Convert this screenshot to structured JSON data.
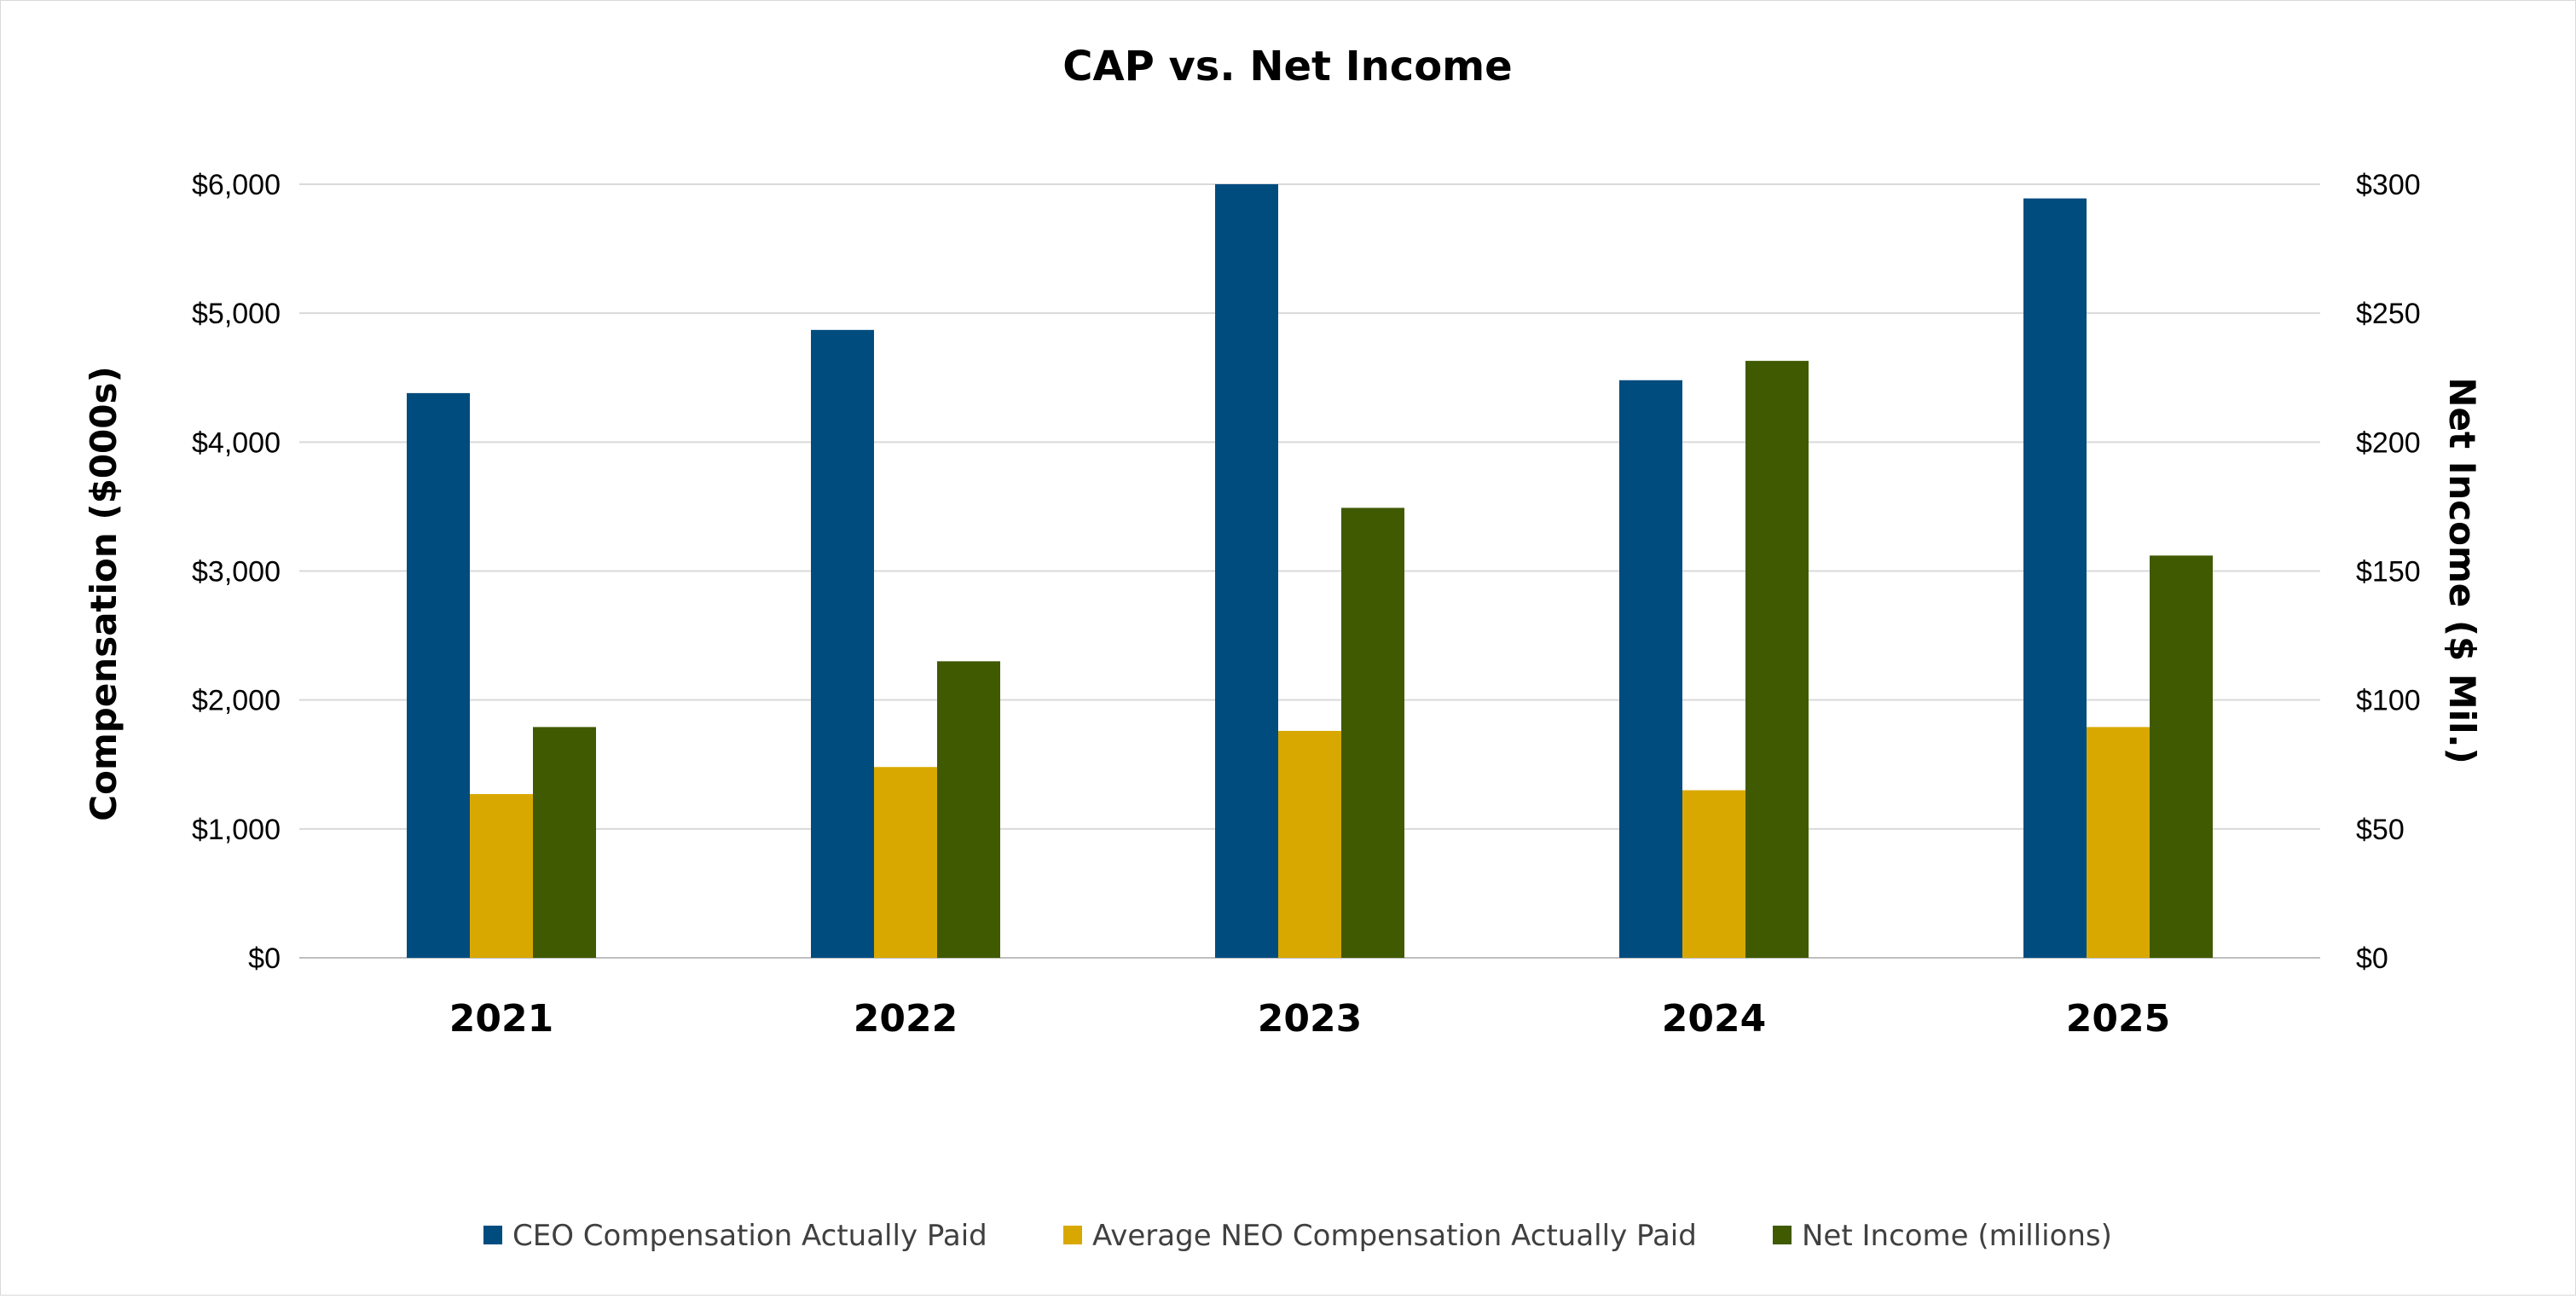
{
  "chart_data": {
    "type": "bar",
    "title": "CAP vs. Net Income",
    "categories": [
      "2021",
      "2022",
      "2023",
      "2024",
      "2025"
    ],
    "y_left": {
      "label": "Compensation ($000s)",
      "min": 0,
      "max": 6000,
      "ticks": [
        0,
        1000,
        2000,
        3000,
        4000,
        5000,
        6000
      ],
      "tick_labels": [
        "$0",
        "$1,000",
        "$2,000",
        "$3,000",
        "$4,000",
        "$5,000",
        "$6,000"
      ]
    },
    "y_right": {
      "label": "Net Income ($ Mil.)",
      "min": 0,
      "max": 300,
      "ticks": [
        0,
        50,
        100,
        150,
        200,
        250,
        300
      ],
      "tick_labels": [
        "$0",
        "$50",
        "$100",
        "$150",
        "$200",
        "$250",
        "$300"
      ]
    },
    "grid": true,
    "legend_position": "bottom",
    "series": [
      {
        "name": "CEO Compensation Actually Paid",
        "axis": "left",
        "color": "#004c7f",
        "values": [
          4380,
          4870,
          6000,
          4480,
          5890
        ]
      },
      {
        "name": "Average NEO Compensation Actually Paid",
        "axis": "left",
        "color": "#d8a800",
        "values": [
          1270,
          1480,
          1760,
          1300,
          1790
        ]
      },
      {
        "name": "Net Income (millions)",
        "axis": "right",
        "color": "#3f5a00",
        "values": [
          89.5,
          115,
          174.5,
          231.5,
          156
        ]
      }
    ]
  }
}
